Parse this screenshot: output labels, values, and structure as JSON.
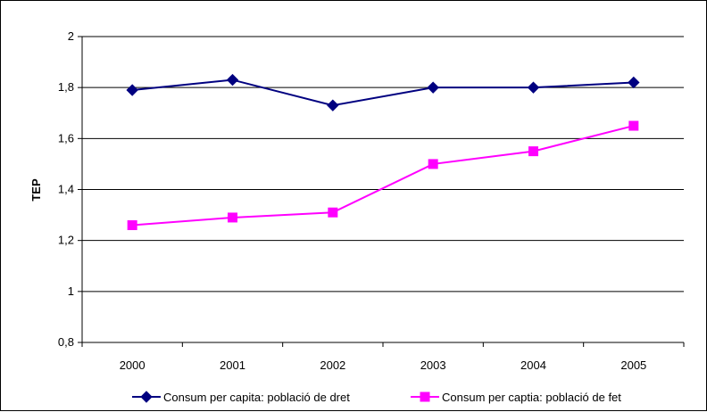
{
  "chart_data": {
    "type": "line",
    "title": "",
    "xlabel": "",
    "ylabel": "TEP",
    "categories": [
      "2000",
      "2001",
      "2002",
      "2003",
      "2004",
      "2005"
    ],
    "ylim": [
      0.8,
      2.0
    ],
    "yticks": [
      0.8,
      1.0,
      1.2,
      1.4,
      1.6,
      1.8,
      2.0
    ],
    "ytick_labels": [
      "0,8",
      "1",
      "1,2",
      "1,4",
      "1,6",
      "1,8",
      "2"
    ],
    "grid": "horizontal",
    "legend_position": "bottom",
    "series": [
      {
        "name": "Consum per capita: població de dret",
        "values": [
          1.79,
          1.83,
          1.73,
          1.8,
          1.8,
          1.82
        ],
        "color": "#000080",
        "marker": "diamond"
      },
      {
        "name": "Consum per captia: població de fet",
        "values": [
          1.26,
          1.29,
          1.31,
          1.5,
          1.55,
          1.65
        ],
        "color": "#FF00FF",
        "marker": "square"
      }
    ]
  }
}
